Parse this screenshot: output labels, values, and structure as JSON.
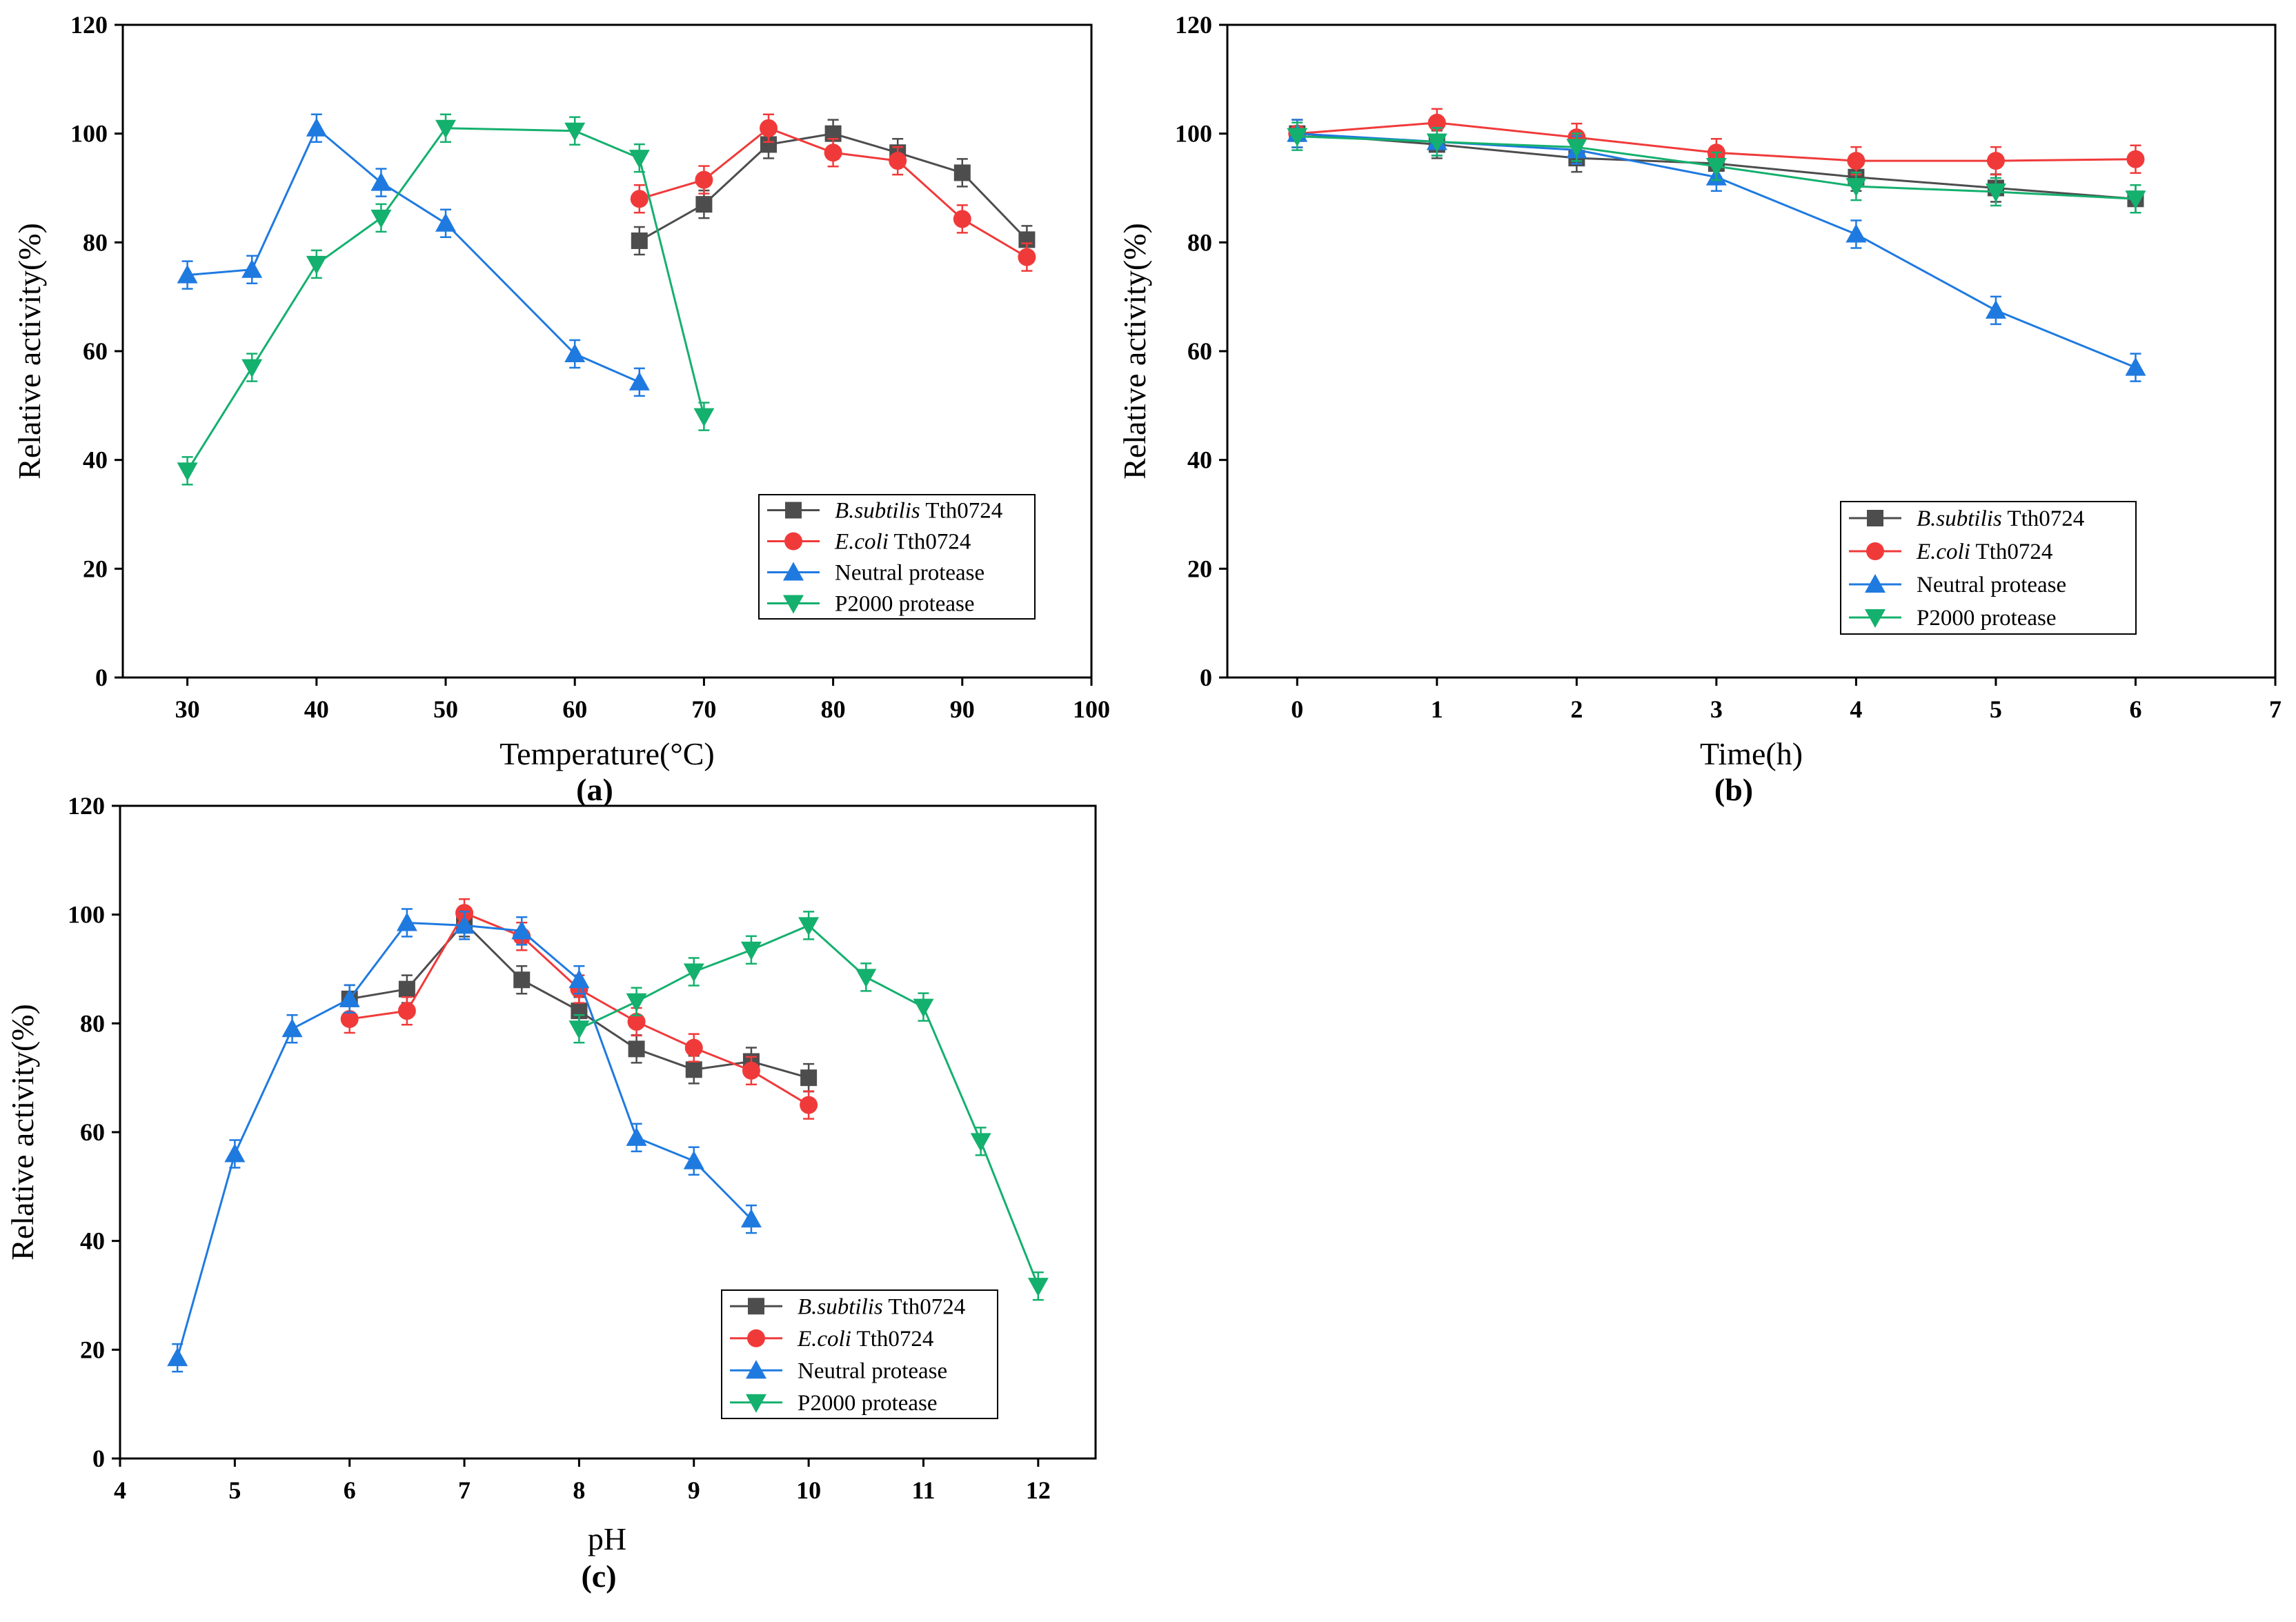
{
  "chart_data": [
    {
      "type": "line",
      "panel": "(a)",
      "xlabel": "Temperature(°C)",
      "ylabel": "Relative activity(%)",
      "xlim": [
        25,
        100
      ],
      "ylim": [
        0,
        120
      ],
      "xticks": [
        30,
        40,
        50,
        60,
        70,
        80,
        90,
        100
      ],
      "yticks": [
        0,
        20,
        40,
        60,
        80,
        100,
        120
      ],
      "legend_position": "bottom-right",
      "series": [
        {
          "name": "B.subtilis Tth0724",
          "name_italic": "B.subtilis",
          "name_rest": " Tth0724",
          "color": "#4d4d4d",
          "marker": "square",
          "x": [
            65,
            70,
            75,
            80,
            85,
            90,
            95
          ],
          "y": [
            80.3,
            87,
            98,
            100,
            96.5,
            92.8,
            80.5
          ]
        },
        {
          "name": "E.coli Tth0724",
          "name_italic": "E.coli",
          "name_rest": " Tth0724",
          "color": "#f03a3a",
          "marker": "circle",
          "x": [
            65,
            70,
            75,
            80,
            85,
            90,
            95
          ],
          "y": [
            88,
            91.5,
            101,
            96.5,
            95,
            84.3,
            77.3
          ]
        },
        {
          "name": "Neutral protease",
          "name_italic": "",
          "name_rest": "Neutral protease",
          "color": "#1f7ae0",
          "marker": "triangle-up",
          "x": [
            30,
            35,
            40,
            45,
            50,
            60,
            65
          ],
          "y": [
            74,
            75,
            101,
            91,
            83.5,
            59.5,
            54.3
          ]
        },
        {
          "name": "P2000 protease",
          "name_italic": "",
          "name_rest": "P2000 protease",
          "color": "#14b06e",
          "marker": "triangle-down",
          "x": [
            30,
            35,
            40,
            45,
            50,
            60,
            65,
            70
          ],
          "y": [
            38,
            57,
            76,
            84.5,
            101,
            100.5,
            95.5,
            48
          ]
        }
      ]
    },
    {
      "type": "line",
      "panel": "(b)",
      "xlabel": "Time(h)",
      "ylabel": "Relative activity(%)",
      "xlim": [
        -0.5,
        7
      ],
      "ylim": [
        0,
        120
      ],
      "xticks": [
        0,
        1,
        2,
        3,
        4,
        5,
        6,
        7
      ],
      "yticks": [
        0,
        20,
        40,
        60,
        80,
        100,
        120
      ],
      "legend_position": "bottom-right",
      "series": [
        {
          "name": "B.subtilis Tth0724",
          "name_italic": "B.subtilis",
          "name_rest": " Tth0724",
          "color": "#4d4d4d",
          "marker": "square",
          "x": [
            0,
            1,
            2,
            3,
            4,
            5,
            6
          ],
          "y": [
            100,
            98,
            95.5,
            94.5,
            92,
            90,
            88
          ]
        },
        {
          "name": "E.coli Tth0724",
          "name_italic": "E.coli",
          "name_rest": " Tth0724",
          "color": "#f03a3a",
          "marker": "circle",
          "x": [
            0,
            1,
            2,
            3,
            4,
            5,
            6
          ],
          "y": [
            100,
            102,
            99.3,
            96.5,
            95,
            95,
            95.3
          ]
        },
        {
          "name": "Neutral protease",
          "name_italic": "",
          "name_rest": "Neutral protease",
          "color": "#1f7ae0",
          "marker": "triangle-up",
          "x": [
            0,
            1,
            2,
            3,
            4,
            5,
            6
          ],
          "y": [
            100,
            98.5,
            97,
            92,
            81.5,
            67.5,
            57
          ]
        },
        {
          "name": "P2000 protease",
          "name_italic": "",
          "name_rest": "P2000 protease",
          "color": "#14b06e",
          "marker": "triangle-down",
          "x": [
            0,
            1,
            2,
            3,
            4,
            5,
            6
          ],
          "y": [
            99.5,
            98.5,
            97.5,
            94,
            90.3,
            89.3,
            88
          ]
        }
      ]
    },
    {
      "type": "line",
      "panel": "(c)",
      "xlabel": "pH",
      "ylabel": "Relative activity(%)",
      "xlim": [
        4,
        12.5
      ],
      "ylim": [
        0,
        120
      ],
      "xticks": [
        4,
        5,
        6,
        7,
        8,
        9,
        10,
        11,
        12
      ],
      "yticks": [
        0,
        20,
        40,
        60,
        80,
        100,
        120
      ],
      "legend_position": "bottom-right",
      "series": [
        {
          "name": "B.subtilis Tth0724",
          "name_italic": "B.subtilis",
          "name_rest": " Tth0724",
          "color": "#4d4d4d",
          "marker": "square",
          "x": [
            6,
            6.5,
            7,
            7.5,
            8,
            8.5,
            9,
            9.5,
            10
          ],
          "y": [
            84.5,
            86.3,
            98.5,
            88,
            82.3,
            75.3,
            71.5,
            73,
            70
          ]
        },
        {
          "name": "E.coli Tth0724",
          "name_italic": "E.coli",
          "name_rest": " Tth0724",
          "color": "#f03a3a",
          "marker": "circle",
          "x": [
            6,
            6.5,
            7,
            7.5,
            8,
            8.5,
            9,
            9.5,
            10
          ],
          "y": [
            80.8,
            82.3,
            100.3,
            96,
            86.3,
            80.3,
            75.5,
            71.3,
            65
          ]
        },
        {
          "name": "Neutral protease",
          "name_italic": "",
          "name_rest": "Neutral protease",
          "color": "#1f7ae0",
          "marker": "triangle-up",
          "x": [
            4.5,
            5,
            5.5,
            6,
            6.5,
            7,
            7.5,
            8,
            8.5,
            9,
            9.5
          ],
          "y": [
            18.5,
            56,
            79,
            84.5,
            98.5,
            98,
            97,
            88,
            59,
            54.7,
            44
          ]
        },
        {
          "name": "P2000 protease",
          "name_italic": "",
          "name_rest": "P2000 protease",
          "color": "#14b06e",
          "marker": "triangle-down",
          "x": [
            8,
            8.5,
            9,
            9.5,
            10,
            10.5,
            11,
            11.5,
            12
          ],
          "y": [
            79,
            84,
            89.5,
            93.5,
            98,
            88.5,
            83,
            58.3,
            31.7
          ]
        }
      ]
    }
  ]
}
